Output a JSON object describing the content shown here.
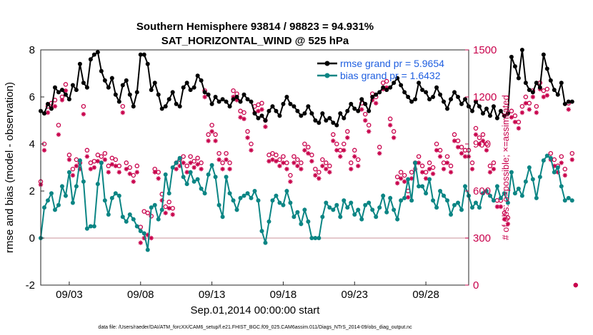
{
  "chart_data": {
    "type": "line",
    "title": "Southern Hemisphere 93814 / 98823 = 94.931%",
    "subtitle": "SAT_HORIZONTAL_WIND @ 525 hPa",
    "xlabel": "Sep.01,2014 00:00:00 start",
    "ylabel": "rmse and bias (model - observation)",
    "ylabel_right": "# of obs: o=possible; ×=assimilated",
    "ylim": [
      -2,
      8
    ],
    "ylim_right": [
      0,
      1500
    ],
    "yticks": [
      "-2",
      "0",
      "2",
      "4",
      "6",
      "8"
    ],
    "yticks_right": [
      "0",
      "300",
      "600",
      "900",
      "1200",
      "1500"
    ],
    "xlim": [
      1.0,
      31.0
    ],
    "xticks": [
      {
        "x": 3.0,
        "label": "09/03"
      },
      {
        "x": 8.0,
        "label": "09/08"
      },
      {
        "x": 13.0,
        "label": "09/13"
      },
      {
        "x": 18.0,
        "label": "09/18"
      },
      {
        "x": 23.0,
        "label": "09/23"
      },
      {
        "x": 28.0,
        "label": "09/28"
      }
    ],
    "legend": {
      "position": "top-right",
      "entries": [
        "rmse grand pr = 5.9654",
        "bias grand pr = 1.6432"
      ]
    },
    "footer": "data file: /Users/raeder/DAI/ATM_forcXX/CAM6_setup/f.e21.FHIST_BGC.f09_025.CAM6assim.011/Diags_NTrS_2014-09/obs_diag_output.nc",
    "x_start": 1.0,
    "x_step": 0.25,
    "series": [
      {
        "name": "rmse grand pr = 5.9654",
        "color": "#000000",
        "values": [
          5.4,
          5.3,
          5.7,
          5.5,
          6.4,
          6.2,
          6.3,
          6.1,
          5.9,
          6.5,
          6.3,
          7.4,
          6.6,
          6.4,
          7.6,
          7.8,
          7.9,
          7.1,
          6.7,
          6.4,
          6.8,
          6.1,
          5.8,
          6.5,
          6.7,
          6.1,
          5.6,
          6.2,
          7.8,
          7.8,
          7.4,
          6.3,
          6.6,
          6.1,
          5.5,
          5.6,
          5.9,
          6.2,
          5.7,
          5.6,
          6.4,
          6.6,
          6.3,
          6.4,
          6.9,
          6.7,
          6.2,
          6.1,
          5.7,
          6.0,
          5.8,
          5.9,
          5.8,
          5.6,
          5.9,
          6.0,
          5.8,
          6.1,
          5.9,
          5.8,
          5.3,
          5.1,
          5.2,
          5.0,
          5.4,
          5.6,
          5.4,
          5.2,
          5.7,
          6.0,
          5.7,
          5.6,
          5.4,
          5.2,
          5.3,
          5.6,
          5.3,
          5.0,
          4.9,
          5.3,
          5.0,
          5.1,
          4.9,
          4.8,
          5.3,
          5.1,
          5.4,
          5.7,
          5.5,
          5.4,
          5.9,
          5.7,
          5.4,
          6.0,
          6.1,
          6.2,
          6.4,
          6.3,
          6.4,
          6.6,
          6.8,
          6.5,
          6.2,
          6.0,
          5.8,
          5.9,
          6.6,
          6.3,
          6.2,
          5.9,
          6.0,
          6.4,
          6.1,
          5.8,
          5.5,
          5.9,
          6.2,
          6.0,
          5.7,
          5.9,
          5.6,
          5.4,
          5.8,
          5.6,
          5.3,
          5.5,
          5.2,
          5.6,
          5.1,
          5.4,
          5.2,
          5.3,
          7.7,
          7.3,
          6.8,
          8.0,
          6.6,
          6.3,
          6.2,
          6.6,
          6.4,
          7.8,
          7.2,
          6.7,
          6.3,
          6.1,
          6.6,
          5.7,
          5.8,
          5.8
        ]
      },
      {
        "name": "bias grand pr = 1.6432",
        "color": "#0b8584",
        "values": [
          0.0,
          1.3,
          1.6,
          1.9,
          1.2,
          1.4,
          2.2,
          1.8,
          2.8,
          1.5,
          2.2,
          3.3,
          2.4,
          0.4,
          0.5,
          0.5,
          2.3,
          3.2,
          1.6,
          1.0,
          1.7,
          1.9,
          1.8,
          0.9,
          0.7,
          1.0,
          0.8,
          0.5,
          0.3,
          0.2,
          -0.5,
          1.3,
          1.4,
          0.8,
          1.2,
          2.7,
          1.9,
          3.0,
          3.2,
          3.4,
          2.6,
          2.3,
          2.8,
          2.4,
          2.5,
          2.1,
          1.9,
          2.7,
          3.1,
          2.6,
          1.4,
          0.9,
          2.6,
          1.9,
          1.6,
          1.2,
          1.7,
          1.8,
          1.9,
          1.7,
          2.0,
          1.6,
          0.3,
          -0.2,
          0.7,
          1.6,
          1.8,
          1.5,
          1.4,
          2.0,
          1.5,
          0.9,
          1.1,
          0.6,
          1.2,
          0.7,
          0.0,
          0.0,
          0.0,
          0.9,
          1.5,
          1.3,
          1.2,
          1.4,
          0.9,
          1.6,
          1.3,
          1.5,
          1.0,
          1.2,
          0.8,
          1.4,
          1.5,
          1.2,
          0.9,
          1.3,
          1.8,
          1.1,
          1.7,
          1.2,
          0.8,
          1.6,
          1.7,
          2.5,
          1.6,
          3.2,
          2.2,
          2.2,
          1.9,
          2.5,
          1.6,
          1.3,
          2.0,
          1.8,
          1.6,
          1.0,
          1.4,
          1.5,
          1.2,
          2.2,
          1.8,
          1.3,
          1.5,
          1.3,
          1.9,
          2.0,
          1.8,
          1.6,
          2.2,
          1.7,
          1.9,
          1.5,
          2.8,
          1.9,
          2.1,
          1.8,
          2.4,
          3.0,
          2.5,
          1.7,
          2.6,
          3.3,
          3.5,
          3.4,
          2.8,
          3.0,
          2.2,
          1.6,
          1.7,
          1.6
        ]
      },
      {
        "name": "",
        "color": "#c8004b",
        "marker": "o",
        "values": [
          660,
          900,
          1140,
          1160,
          1180,
          1020,
          1200,
          1280,
          830,
          740,
          800,
          780,
          1140,
          860,
          780,
          790,
          830,
          820,
          840,
          760,
          810,
          800,
          760,
          1140,
          780,
          750,
          700,
          760,
          370,
          470,
          460,
          440,
          740,
          720,
          580,
          500,
          530,
          490,
          780,
          800,
          820,
          760,
          820,
          790,
          810,
          780,
          1240,
          960,
          1020,
          960,
          840,
          780,
          840,
          780,
          1240,
          1220,
          1110,
          1100,
          980,
          900,
          1140,
          1150,
          1160,
          1050,
          830,
          840,
          830,
          800,
          820,
          780,
          700,
          820,
          800,
          780,
          900,
          880,
          830,
          740,
          720,
          800,
          780,
          760,
          960,
          900,
          860,
          900,
          980,
          780,
          860,
          800,
          1160,
          1090,
          1020,
          1220,
          1200,
          880,
          1290,
          1300,
          1060,
          980,
          690,
          720,
          700,
          600,
          720,
          780,
          820,
          760,
          720,
          780,
          750,
          900,
          860,
          780,
          820,
          760,
          960,
          920,
          880,
          860,
          860,
          780,
          1000,
          940,
          960,
          900,
          760,
          780,
          540,
          540,
          460,
          430,
          1110,
          1080,
          1040,
          1140,
          1200,
          1160,
          1240,
          1140,
          1290,
          1240,
          1250,
          840,
          800,
          760,
          820,
          740,
          1160,
          840,
          0
        ]
      },
      {
        "name": "",
        "color": "#c8004b",
        "marker": "x",
        "values": [
          640,
          860,
          1100,
          1130,
          1140,
          960,
          1180,
          1240,
          800,
          700,
          760,
          740,
          1090,
          820,
          740,
          750,
          790,
          780,
          800,
          720,
          770,
          760,
          720,
          1100,
          740,
          710,
          660,
          720,
          270,
          300,
          320,
          300,
          720,
          680,
          540,
          460,
          490,
          450,
          740,
          760,
          780,
          720,
          780,
          750,
          770,
          740,
          1200,
          920,
          980,
          920,
          800,
          740,
          800,
          740,
          1200,
          1180,
          1070,
          1060,
          940,
          860,
          1100,
          1110,
          1120,
          1010,
          790,
          800,
          790,
          760,
          780,
          740,
          660,
          780,
          760,
          740,
          860,
          840,
          790,
          700,
          680,
          760,
          740,
          720,
          920,
          860,
          820,
          860,
          940,
          740,
          820,
          760,
          1120,
          1050,
          980,
          1180,
          1160,
          840,
          1250,
          1260,
          1020,
          940,
          650,
          680,
          660,
          560,
          680,
          740,
          780,
          720,
          680,
          740,
          710,
          860,
          820,
          740,
          780,
          720,
          920,
          880,
          840,
          820,
          820,
          740,
          960,
          900,
          920,
          860,
          720,
          740,
          500,
          500,
          420,
          390,
          1070,
          1040,
          1000,
          1100,
          1160,
          1120,
          1200,
          1100,
          1250,
          1200,
          1210,
          800,
          760,
          720,
          780,
          700,
          1120,
          800,
          0
        ]
      }
    ]
  }
}
